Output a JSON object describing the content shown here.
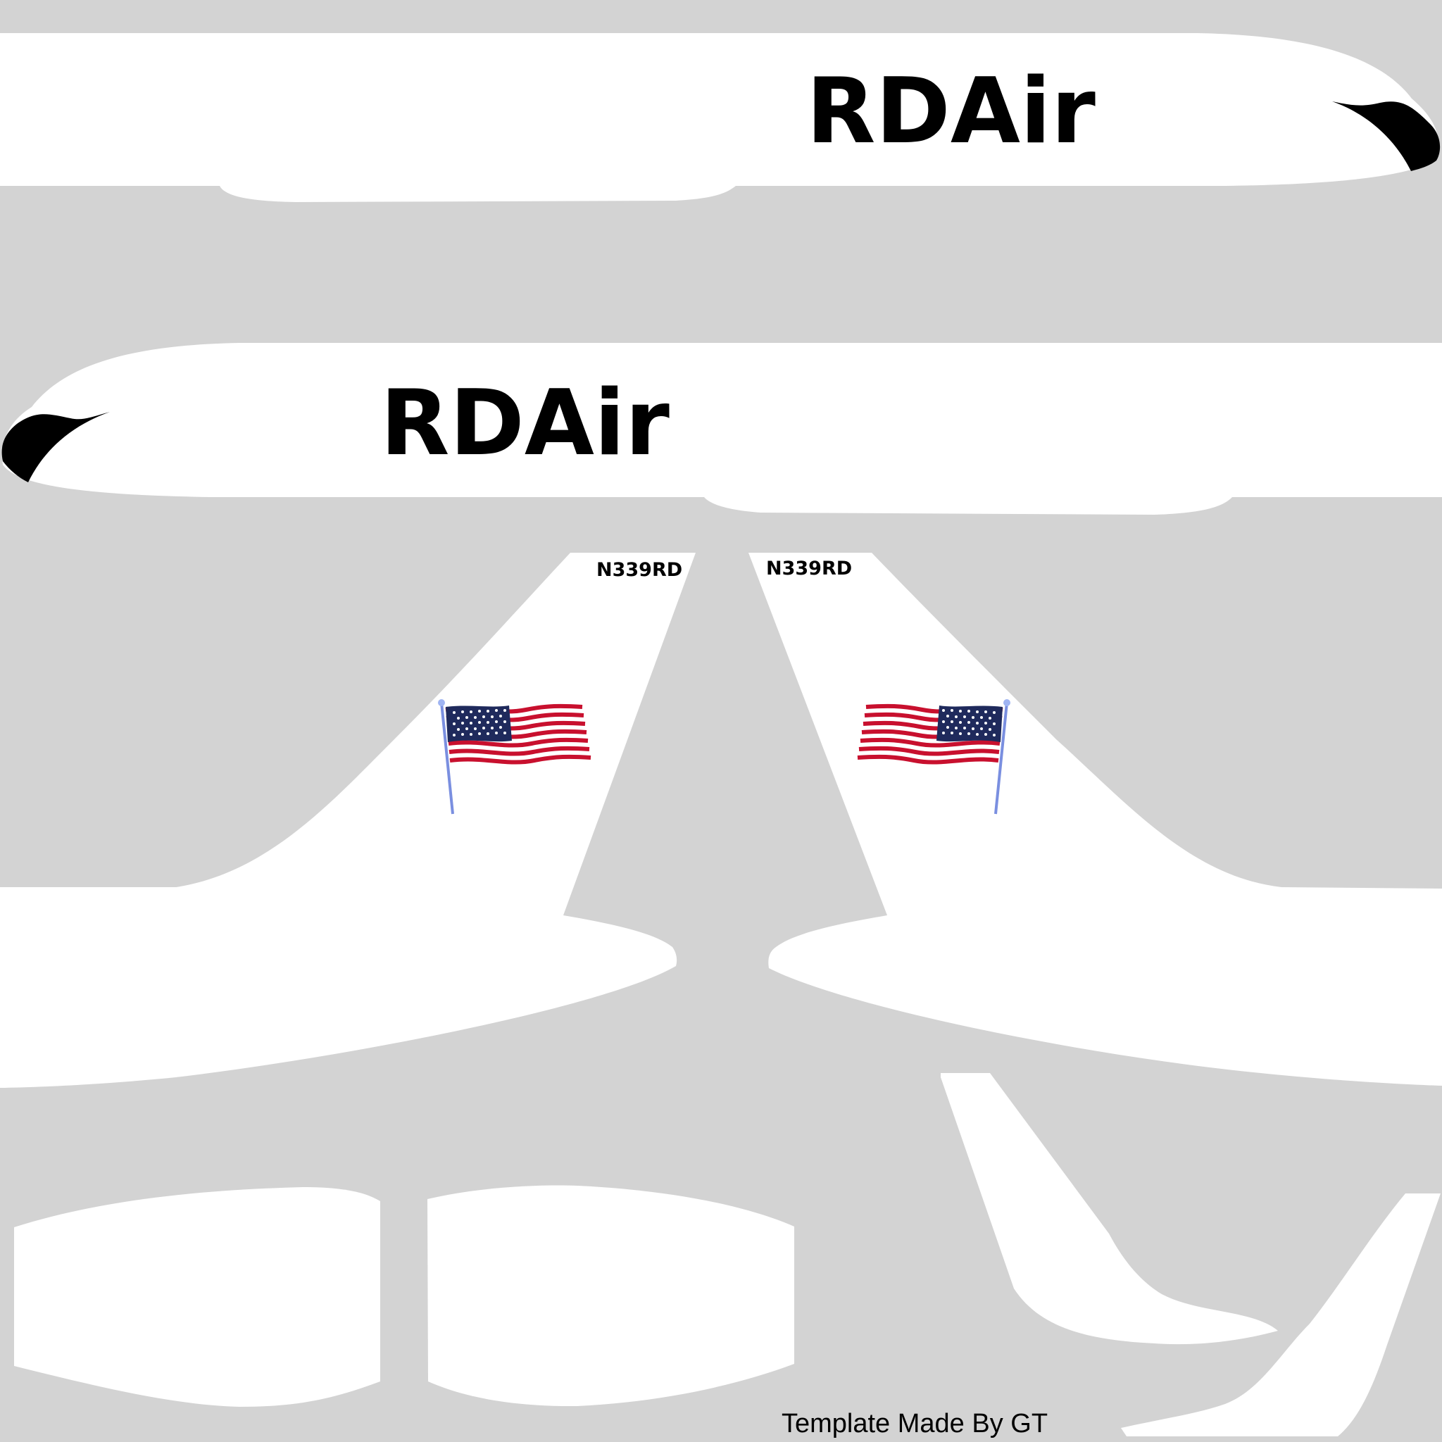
{
  "template": {
    "airline_name": "RDAir",
    "registration": "N339RD",
    "credit": "Template Made By GT"
  },
  "colors": {
    "background": "#d3d3d3",
    "panel": "#ffffff",
    "text": "#000000",
    "flag_red": "#c8102e",
    "flag_blue": "#1f2a5c",
    "flag_white": "#ffffff",
    "flagpole": "#7a8fe0"
  },
  "icons": {
    "flag": "us-flag-icon",
    "nose_cap": "black-nose-cap"
  }
}
